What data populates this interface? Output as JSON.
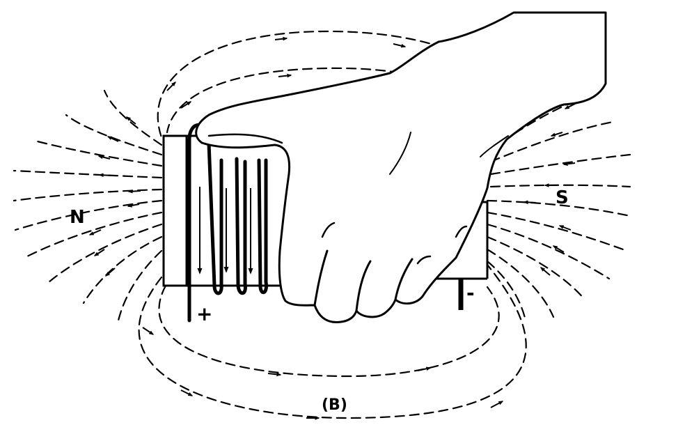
{
  "labels": {
    "north": "N",
    "south": "S",
    "positive": "+",
    "negative": "-",
    "caption": "(B)"
  },
  "colors": {
    "ink": "#000000",
    "background": "#ffffff"
  }
}
